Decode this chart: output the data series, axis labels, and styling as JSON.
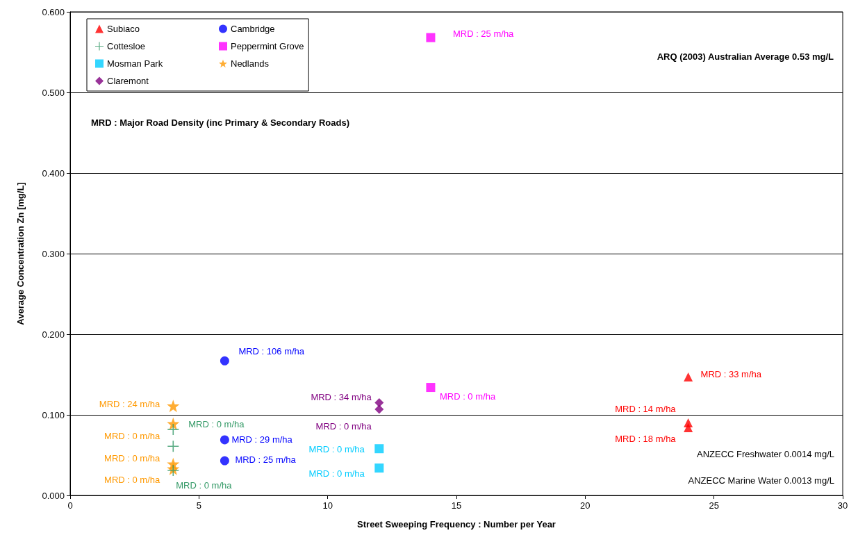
{
  "chart_data": {
    "type": "scatter",
    "xlabel": "Street Sweeping Frequency : Number per Year",
    "ylabel": "Average Concentration Zn [mg/L]",
    "xlim": [
      0,
      30
    ],
    "xticks": [
      0,
      5,
      10,
      15,
      20,
      25,
      30
    ],
    "ylim": [
      0,
      0.6
    ],
    "yticks": [
      {
        "value": 0,
        "label": "0.000"
      },
      {
        "value": 0.1,
        "label": "0.100"
      },
      {
        "value": 0.2,
        "label": "0.200"
      },
      {
        "value": 0.3,
        "label": "0.300"
      },
      {
        "value": 0.4,
        "label": "0.400"
      },
      {
        "value": 0.5,
        "label": "0.500"
      },
      {
        "value": 0.6,
        "label": "0.600"
      }
    ],
    "grid": "y",
    "legend": "top left",
    "annotations": [
      "ARQ (2003) Australian Average 0.53 mg/L",
      "MRD : Major Road Density (inc Primary & Secondary Roads)",
      "ANZECC Freshwater 0.0014 mg/L",
      "ANZECC Marine Water 0.0013 mg/L",
      {
        "text": "MRD : 33 m/ha",
        "x": 24,
        "y": 0.147
      },
      {
        "text": "MRD : 14 m/ha",
        "x": 24,
        "y": 0.09
      },
      {
        "text": "MRD : 18 m/ha",
        "x": 24,
        "y": 0.084
      },
      {
        "text": "MRD : 106 m/ha",
        "x": 6,
        "y": 0.167
      },
      {
        "text": "MRD : 29 m/ha",
        "x": 6,
        "y": 0.069
      },
      {
        "text": "MRD : 25 m/ha",
        "x": 6,
        "y": 0.043
      },
      {
        "text": "MRD : 0 m/ha",
        "x": 4,
        "y": 0.082
      },
      {
        "text": "MRD : 0 m/ha",
        "x": 4,
        "y": 0.031
      },
      {
        "text": "MRD : 25 m/ha",
        "x": 14,
        "y": 0.568
      },
      {
        "text": "MRD : 0 m/ha",
        "x": 14,
        "y": 0.134
      },
      {
        "text": "MRD : 0 m/ha",
        "x": 12,
        "y": 0.058
      },
      {
        "text": "MRD : 0 m/ha",
        "x": 12,
        "y": 0.034
      },
      {
        "text": "MRD : 24 m/ha",
        "x": 4,
        "y": 0.111
      },
      {
        "text": "MRD : 0 m/ha",
        "x": 4,
        "y": 0.089
      },
      {
        "text": "MRD : 0 m/ha",
        "x": 4,
        "y": 0.039
      },
      {
        "text": "MRD : 0 m/ha",
        "x": 4,
        "y": 0.033
      },
      {
        "text": "MRD : 34 m/ha",
        "x": 12,
        "y": 0.115
      },
      {
        "text": "MRD : 0 m/ha",
        "x": 12,
        "y": 0.107
      }
    ],
    "series": [
      {
        "name": "Subiaco",
        "color": "#ff0000",
        "marker": "triangle",
        "x": [
          24,
          24,
          24
        ],
        "values": [
          0.147,
          0.09,
          0.084
        ]
      },
      {
        "name": "Cambridge",
        "color": "#0000ff",
        "marker": "circle",
        "x": [
          6,
          6,
          6
        ],
        "values": [
          0.167,
          0.069,
          0.043
        ]
      },
      {
        "name": "Cottesloe",
        "color": "#339966",
        "marker": "cross",
        "x": [
          4,
          4,
          4
        ],
        "values": [
          0.082,
          0.061,
          0.031
        ]
      },
      {
        "name": "Peppermint Grove",
        "color": "#ff00ff",
        "marker": "square",
        "x": [
          14,
          14
        ],
        "values": [
          0.568,
          0.134
        ]
      },
      {
        "name": "Mosman Park",
        "color": "#00ccff",
        "marker": "square",
        "x": [
          12,
          12
        ],
        "values": [
          0.058,
          0.034
        ]
      },
      {
        "name": "Nedlands",
        "color": "#ff9900",
        "marker": "star",
        "x": [
          4,
          4,
          4,
          4
        ],
        "values": [
          0.111,
          0.089,
          0.039,
          0.033
        ]
      },
      {
        "name": "Claremont",
        "color": "#800080",
        "marker": "diamond",
        "x": [
          12,
          12
        ],
        "values": [
          0.115,
          0.107
        ]
      }
    ]
  }
}
